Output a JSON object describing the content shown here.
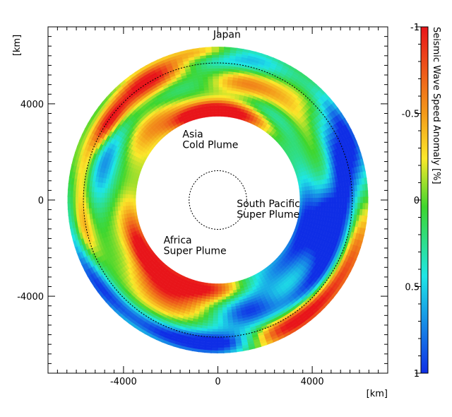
{
  "chart_data": {
    "type": "heatmap",
    "title": "",
    "xlabel": "[km]",
    "ylabel": "[km]",
    "xlim": [
      -7200,
      7200
    ],
    "ylim": [
      -7200,
      7200
    ],
    "x_ticks": [
      {
        "value": -4000,
        "label": "-4000"
      },
      {
        "value": 0,
        "label": "0"
      },
      {
        "value": 4000,
        "label": "4000"
      }
    ],
    "y_ticks": [
      {
        "value": 4000,
        "label": "4000"
      },
      {
        "value": 0,
        "label": "0"
      },
      {
        "value": -4000,
        "label": "-4000"
      }
    ],
    "grid": false,
    "annulus": {
      "inner_radius_km": 3480,
      "outer_radius_km": 6371
    },
    "dashed_circles_km": [
      5700,
      1220
    ],
    "annotations": [
      {
        "text": [
          "Japan"
        ],
        "x": -200,
        "y": 6750
      },
      {
        "text": [
          "Asia",
          "Cold Plume"
        ],
        "x": -1500,
        "y": 2600
      },
      {
        "text": [
          "South Pacific",
          "Super Plume"
        ],
        "x": 800,
        "y": -300
      },
      {
        "text": [
          "Africa",
          "Super Plume"
        ],
        "x": -2300,
        "y": -1800
      }
    ],
    "anomalies": [
      {
        "theta": 18,
        "r": 3700,
        "value": -1.0,
        "sigma_t": 22,
        "sigma_r": 320
      },
      {
        "theta": 347,
        "r": 3650,
        "value": -1.0,
        "sigma_t": 14,
        "sigma_r": 260
      },
      {
        "theta": 198,
        "r": 3750,
        "value": -1.0,
        "sigma_t": 28,
        "sigma_r": 330
      },
      {
        "theta": 230,
        "r": 3800,
        "value": -0.9,
        "sigma_t": 16,
        "sigma_r": 280
      },
      {
        "theta": 110,
        "r": 3700,
        "value": 0.6,
        "sigma_t": 40,
        "sigma_r": 380
      },
      {
        "theta": 88,
        "r": 4000,
        "value": 0.35,
        "sigma_t": 30,
        "sigma_r": 500
      },
      {
        "theta": 320,
        "r": 4200,
        "value": -0.4,
        "sigma_t": 20,
        "sigma_r": 600
      },
      {
        "theta": 270,
        "r": 4100,
        "value": -0.25,
        "sigma_t": 40,
        "sigma_r": 600
      },
      {
        "theta": 330,
        "r": 5800,
        "value": -1.0,
        "sigma_t": 12,
        "sigma_r": 360
      },
      {
        "theta": 150,
        "r": 6000,
        "value": -1.0,
        "sigma_t": 16,
        "sigma_r": 380
      },
      {
        "theta": 175,
        "r": 6000,
        "value": 0.7,
        "sigma_t": 10,
        "sigma_r": 360
      },
      {
        "theta": 200,
        "r": 6000,
        "value": 1.0,
        "sigma_t": 16,
        "sigma_r": 380
      },
      {
        "theta": 235,
        "r": 6100,
        "value": 0.9,
        "sigma_t": 18,
        "sigma_r": 340
      },
      {
        "theta": 255,
        "r": 5900,
        "value": -0.9,
        "sigma_t": 12,
        "sigma_r": 340
      },
      {
        "theta": 290,
        "r": 5900,
        "value": -0.5,
        "sigma_t": 15,
        "sigma_r": 360
      },
      {
        "theta": 305,
        "r": 5600,
        "value": -0.9,
        "sigma_t": 8,
        "sigma_r": 260
      },
      {
        "theta": 20,
        "r": 6000,
        "value": 0.7,
        "sigma_t": 20,
        "sigma_r": 380
      },
      {
        "theta": 45,
        "r": 5800,
        "value": -0.4,
        "sigma_t": 15,
        "sigma_r": 400
      },
      {
        "theta": 60,
        "r": 6100,
        "value": 0.8,
        "sigma_t": 15,
        "sigma_r": 320
      },
      {
        "theta": 75,
        "r": 5400,
        "value": 0.9,
        "sigma_t": 20,
        "sigma_r": 400
      },
      {
        "theta": 118,
        "r": 6050,
        "value": -0.8,
        "sigma_t": 18,
        "sigma_r": 350
      },
      {
        "theta": 135,
        "r": 5300,
        "value": 1.0,
        "sigma_t": 18,
        "sigma_r": 380
      },
      {
        "theta": 165,
        "r": 4800,
        "value": 0.7,
        "sigma_t": 12,
        "sigma_r": 400
      },
      {
        "theta": 200,
        "r": 4700,
        "value": -0.4,
        "sigma_t": 20,
        "sigma_r": 500
      },
      {
        "theta": 215,
        "r": 4300,
        "value": -0.7,
        "sigma_t": 15,
        "sigma_r": 400
      },
      {
        "theta": 290,
        "r": 5100,
        "value": 0.6,
        "sigma_t": 18,
        "sigma_r": 450
      },
      {
        "theta": 10,
        "r": 5000,
        "value": -0.6,
        "sigma_t": 12,
        "sigma_r": 400
      },
      {
        "theta": 40,
        "r": 4700,
        "value": -0.5,
        "sigma_t": 18,
        "sigma_r": 500
      },
      {
        "theta": 100,
        "r": 5200,
        "value": 0.4,
        "sigma_t": 25,
        "sigma_r": 600
      },
      {
        "theta": 100,
        "r": 4600,
        "value": 0.6,
        "sigma_t": 12,
        "sigma_r": 300
      },
      {
        "theta": 250,
        "r": 4400,
        "value": 0.3,
        "sigma_t": 20,
        "sigma_r": 500
      },
      {
        "theta": 30,
        "r": 4300,
        "value": 0.5,
        "sigma_t": 15,
        "sigma_r": 350
      },
      {
        "theta": 330,
        "r": 4800,
        "value": 0.5,
        "sigma_t": 15,
        "sigma_r": 350
      },
      {
        "theta": 355,
        "r": 6200,
        "value": -0.7,
        "sigma_t": 10,
        "sigma_r": 250
      },
      {
        "theta": 150,
        "r": 4200,
        "value": 0.5,
        "sigma_t": 25,
        "sigma_r": 500
      },
      {
        "theta": 275,
        "r": 6250,
        "value": 0.4,
        "sigma_t": 25,
        "sigma_r": 250
      }
    ]
  },
  "colorbar": {
    "title": "Seismic Wave Speed Anomaly [%]",
    "range": [
      -1,
      1
    ],
    "ticks": [
      {
        "value": -1,
        "label": "-1"
      },
      {
        "value": -0.5,
        "label": "-0.5"
      },
      {
        "value": 0,
        "label": "0"
      },
      {
        "value": 0.5,
        "label": "0.5"
      },
      {
        "value": 1,
        "label": "1"
      }
    ],
    "colors": [
      "#e8151a",
      "#f39a1a",
      "#fbe82a",
      "#3ed62e",
      "#1ee6e6",
      "#0f2ee6"
    ]
  }
}
